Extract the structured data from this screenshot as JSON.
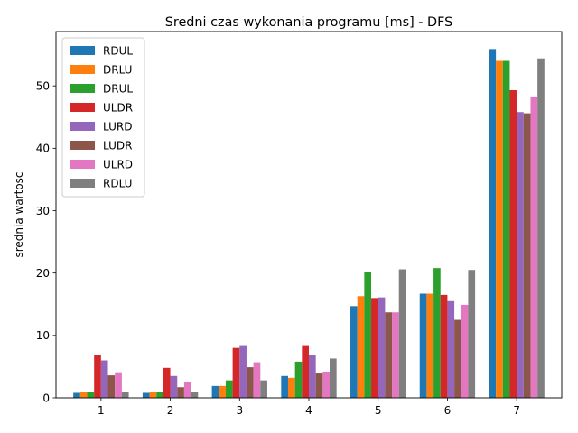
{
  "chart_data": {
    "type": "bar",
    "title": "Sredni czas wykonania programu [ms] - DFS",
    "xlabel": "",
    "ylabel": "srednia wartosc",
    "categories": [
      "1",
      "2",
      "3",
      "4",
      "5",
      "6",
      "7"
    ],
    "ylim": [
      0,
      58.7
    ],
    "yticks": [
      "0",
      "10",
      "20",
      "30",
      "40",
      "50"
    ],
    "legend_position": "upper-left",
    "grid": false,
    "series": [
      {
        "name": "RDUL",
        "color": "#1f77b4",
        "values": [
          0.8,
          0.8,
          1.9,
          3.5,
          14.7,
          16.7,
          55.9
        ]
      },
      {
        "name": "DRLU",
        "color": "#ff7f0e",
        "values": [
          0.9,
          0.9,
          1.9,
          3.2,
          16.3,
          16.7,
          54.0
        ]
      },
      {
        "name": "DRUL",
        "color": "#2ca02c",
        "values": [
          0.9,
          0.9,
          2.8,
          5.8,
          20.2,
          20.8,
          54.0
        ]
      },
      {
        "name": "ULDR",
        "color": "#d62728",
        "values": [
          6.8,
          4.8,
          8.0,
          8.3,
          16.0,
          16.5,
          49.3
        ]
      },
      {
        "name": "LURD",
        "color": "#9467bd",
        "values": [
          6.0,
          3.5,
          8.3,
          6.9,
          16.1,
          15.5,
          45.8
        ]
      },
      {
        "name": "LUDR",
        "color": "#8c564b",
        "values": [
          3.6,
          1.7,
          4.9,
          3.9,
          13.7,
          12.5,
          45.6
        ]
      },
      {
        "name": "ULRD",
        "color": "#e377c2",
        "values": [
          4.1,
          2.6,
          5.7,
          4.2,
          13.7,
          14.9,
          48.3
        ]
      },
      {
        "name": "RDLU",
        "color": "#7f7f7f",
        "values": [
          0.9,
          0.9,
          2.8,
          6.3,
          20.6,
          20.5,
          54.4
        ]
      }
    ]
  }
}
